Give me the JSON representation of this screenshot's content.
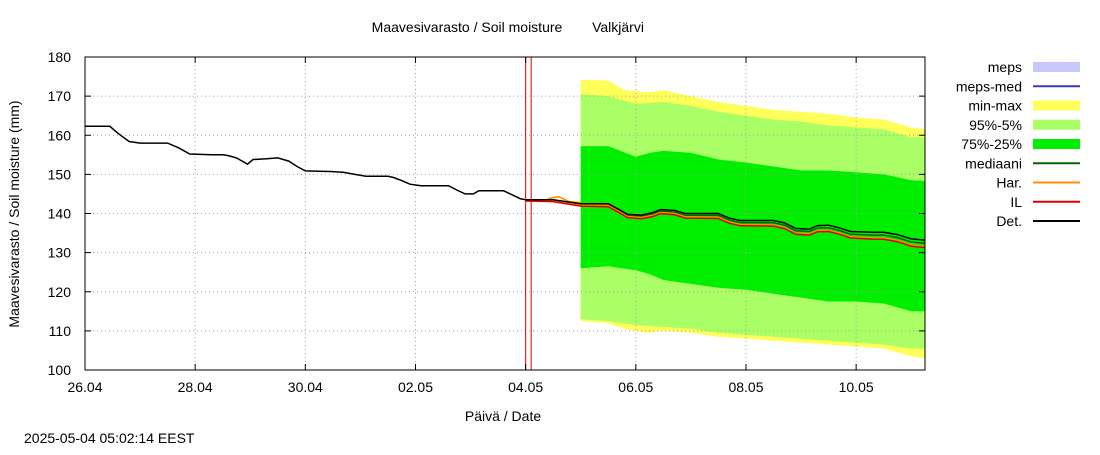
{
  "chart_data": {
    "type": "area",
    "title": "Maavesivarasto / Soil moisture",
    "location": "Valkjärvi",
    "xlabel": "Päivä / Date",
    "ylabel": "Maavesivarasto / Soil moisture (mm)",
    "ylim": [
      100,
      180
    ],
    "yticks": [
      100,
      110,
      120,
      130,
      140,
      150,
      160,
      170,
      180
    ],
    "xlim": [
      0,
      15.25
    ],
    "xticks": [
      {
        "x": 0,
        "label": "26.04"
      },
      {
        "x": 2,
        "label": "28.04"
      },
      {
        "x": 4,
        "label": "30.04"
      },
      {
        "x": 6,
        "label": "02.05"
      },
      {
        "x": 8,
        "label": "04.05"
      },
      {
        "x": 10,
        "label": "06.05"
      },
      {
        "x": 12,
        "label": "08.05"
      },
      {
        "x": 14,
        "label": "10.05"
      }
    ],
    "grid": true,
    "legend_position": "right",
    "vertical_markers": [
      8.0,
      8.1
    ],
    "forecast_start": 9.0,
    "legend": [
      {
        "key": "meps",
        "label": "meps",
        "color": "#c8c8ff",
        "kind": "box"
      },
      {
        "key": "meps_med",
        "label": "meps-med",
        "color": "#3a3ab8",
        "kind": "line"
      },
      {
        "key": "minmax",
        "label": "min-max",
        "color": "#ffff5a",
        "kind": "box"
      },
      {
        "key": "p95_5",
        "label": "95%-5%",
        "color": "#aaff66",
        "kind": "box"
      },
      {
        "key": "p75_25",
        "label": "75%-25%",
        "color": "#00ee00",
        "kind": "box"
      },
      {
        "key": "median",
        "label": "mediaani",
        "color": "#006400",
        "kind": "line"
      },
      {
        "key": "har",
        "label": "Har.",
        "color": "#ff8c00",
        "kind": "line"
      },
      {
        "key": "il",
        "label": "IL",
        "color": "#dd0000",
        "kind": "line"
      },
      {
        "key": "det",
        "label": "Det.",
        "color": "#000000",
        "kind": "line"
      }
    ],
    "series": {
      "det": [
        [
          0,
          162.3
        ],
        [
          0.45,
          162.3
        ],
        [
          0.6,
          160.5
        ],
        [
          0.8,
          158.4
        ],
        [
          1.0,
          158.0
        ],
        [
          1.5,
          158.0
        ],
        [
          1.7,
          156.8
        ],
        [
          1.9,
          155.2
        ],
        [
          2.3,
          155.0
        ],
        [
          2.5,
          155.0
        ],
        [
          2.6,
          154.8
        ],
        [
          2.75,
          154.2
        ],
        [
          2.95,
          152.6
        ],
        [
          3.05,
          153.8
        ],
        [
          3.3,
          154.0
        ],
        [
          3.5,
          154.2
        ],
        [
          3.7,
          153.4
        ],
        [
          3.85,
          152.0
        ],
        [
          4.0,
          150.9
        ],
        [
          4.5,
          150.7
        ],
        [
          4.7,
          150.5
        ],
        [
          4.9,
          150.0
        ],
        [
          5.1,
          149.5
        ],
        [
          5.5,
          149.5
        ],
        [
          5.6,
          149.2
        ],
        [
          5.75,
          148.4
        ],
        [
          5.9,
          147.5
        ],
        [
          6.1,
          147.1
        ],
        [
          6.6,
          147.1
        ],
        [
          6.75,
          146.0
        ],
        [
          6.9,
          145.0
        ],
        [
          7.05,
          145.0
        ],
        [
          7.15,
          145.8
        ],
        [
          7.6,
          145.8
        ],
        [
          7.75,
          144.8
        ],
        [
          7.9,
          143.8
        ],
        [
          8.0,
          143.5
        ],
        [
          8.5,
          143.5
        ],
        [
          9.0,
          142.5
        ],
        [
          9.5,
          142.5
        ],
        [
          9.7,
          141.0
        ],
        [
          9.85,
          139.8
        ],
        [
          10.1,
          139.6
        ],
        [
          10.3,
          140.2
        ],
        [
          10.45,
          141.0
        ],
        [
          10.7,
          140.8
        ],
        [
          10.9,
          140.0
        ],
        [
          11.5,
          140.0
        ],
        [
          11.7,
          138.8
        ],
        [
          11.9,
          138.2
        ],
        [
          12.5,
          138.2
        ],
        [
          12.7,
          137.6
        ],
        [
          12.9,
          136.2
        ],
        [
          13.15,
          136.0
        ],
        [
          13.3,
          136.9
        ],
        [
          13.5,
          137.0
        ],
        [
          13.7,
          136.3
        ],
        [
          13.9,
          135.4
        ],
        [
          14.3,
          135.2
        ],
        [
          14.5,
          135.2
        ],
        [
          14.75,
          134.6
        ],
        [
          15.0,
          133.5
        ],
        [
          15.25,
          133.2
        ]
      ],
      "det_offsets": [
        [
          8.0,
          0
        ],
        [
          9.0,
          -0.3
        ],
        [
          11.0,
          -0.9
        ],
        [
          13.0,
          -1.2
        ],
        [
          15.25,
          -1.6
        ]
      ],
      "band_75_25": [
        [
          9.0,
          157.2,
          126.0
        ],
        [
          9.5,
          157.2,
          126.5
        ],
        [
          10.0,
          154.5,
          125.5
        ],
        [
          10.25,
          155.5,
          124.5
        ],
        [
          10.5,
          156.0,
          123.0
        ],
        [
          11.0,
          155.5,
          122.0
        ],
        [
          11.5,
          153.8,
          121.0
        ],
        [
          12.0,
          153.0,
          120.5
        ],
        [
          12.5,
          152.0,
          119.5
        ],
        [
          13.0,
          151.0,
          118.5
        ],
        [
          13.5,
          151.0,
          117.5
        ],
        [
          14.0,
          150.5,
          117.5
        ],
        [
          14.5,
          150.0,
          117.0
        ],
        [
          15.0,
          148.5,
          115.0
        ],
        [
          15.25,
          148.3,
          115.0
        ]
      ],
      "band_95_5": [
        [
          9.0,
          170.5,
          113.0
        ],
        [
          9.5,
          170.0,
          112.5
        ],
        [
          10.0,
          168.0,
          111.5
        ],
        [
          10.5,
          168.5,
          111.0
        ],
        [
          11.0,
          167.5,
          110.5
        ],
        [
          11.5,
          166.0,
          109.5
        ],
        [
          12.0,
          165.0,
          109.0
        ],
        [
          12.5,
          164.0,
          108.5
        ],
        [
          13.0,
          163.5,
          108.0
        ],
        [
          13.5,
          162.5,
          107.5
        ],
        [
          14.0,
          162.0,
          107.0
        ],
        [
          14.5,
          161.5,
          106.5
        ],
        [
          15.0,
          159.5,
          105.5
        ],
        [
          15.25,
          159.5,
          105.5
        ]
      ],
      "band_minmax": [
        [
          9.0,
          174.2,
          112.5
        ],
        [
          9.5,
          174.0,
          112.0
        ],
        [
          9.8,
          171.5,
          110.5
        ],
        [
          10.2,
          171.0,
          109.5
        ],
        [
          10.5,
          171.5,
          110.0
        ],
        [
          11.0,
          170.0,
          109.5
        ],
        [
          11.5,
          168.5,
          108.5
        ],
        [
          12.0,
          167.5,
          108.0
        ],
        [
          12.5,
          166.5,
          107.5
        ],
        [
          13.0,
          166.0,
          107.0
        ],
        [
          13.5,
          165.5,
          106.5
        ],
        [
          14.0,
          164.5,
          106.0
        ],
        [
          14.5,
          164.0,
          105.5
        ],
        [
          15.0,
          162.0,
          103.5
        ],
        [
          15.25,
          161.5,
          103.0
        ]
      ],
      "pre_forecast_tail": [
        [
          8.4,
          143.8
        ],
        [
          8.6,
          144.3
        ],
        [
          8.8,
          143.0
        ],
        [
          9.0,
          142.8
        ]
      ]
    }
  },
  "footer": {
    "timestamp": "2025-05-04 05:02:14 EEST"
  }
}
